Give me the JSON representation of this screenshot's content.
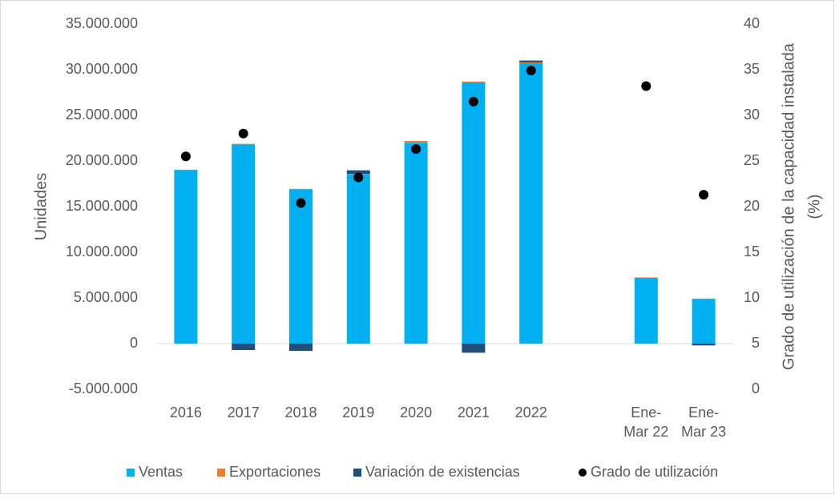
{
  "chart_data": {
    "type": "bar",
    "stacked": true,
    "categories": [
      "2016",
      "2017",
      "2018",
      "2019",
      "2020",
      "2021",
      "2022",
      null,
      "Ene-Mar 22",
      "Ene-Mar 23"
    ],
    "series": [
      {
        "name": "Ventas",
        "color": "#00b0f0",
        "values": [
          19000000,
          21800000,
          16900000,
          18500000,
          22000000,
          28600000,
          30700000,
          null,
          7200000,
          4900000
        ]
      },
      {
        "name": "Exportaciones",
        "color": "#ed7d31",
        "values": [
          50000,
          80000,
          50000,
          80000,
          200000,
          100000,
          100000,
          null,
          50000,
          30000
        ]
      },
      {
        "name": "Variación de existencias",
        "color": "#1f4e79",
        "values": [
          0,
          -700000,
          -800000,
          400000,
          0,
          -1000000,
          200000,
          null,
          0,
          -200000
        ]
      },
      {
        "name": "Grado de utilización",
        "color": "#000000",
        "type": "scatter",
        "axis": "y2",
        "values": [
          25.5,
          28.0,
          20.4,
          23.2,
          26.3,
          31.5,
          34.9,
          null,
          33.2,
          21.3
        ]
      }
    ],
    "ylabel": "Unidades",
    "y2label": [
      "Grado de utilización de la capacidad instalada",
      "(%)"
    ],
    "ylim": [
      -5000000,
      35000000
    ],
    "yticks": [
      {
        "value": -5000000,
        "label": "-5.000.000"
      },
      0,
      {
        "value": 5000000,
        "label": "5.000.000"
      },
      {
        "value": 10000000,
        "label": "10.000.000"
      },
      {
        "value": 15000000,
        "label": "15.000.000"
      },
      {
        "value": 20000000,
        "label": "20.000.000"
      },
      {
        "value": 25000000,
        "label": "25.000.000"
      },
      {
        "value": 30000000,
        "label": "30.000.000"
      },
      {
        "value": 35000000,
        "label": "35.000.000"
      }
    ],
    "y2lim": [
      0,
      40
    ],
    "y2ticks": [
      0,
      5,
      10,
      15,
      20,
      25,
      30,
      35,
      40
    ],
    "grid": false,
    "legend": "bottom"
  }
}
